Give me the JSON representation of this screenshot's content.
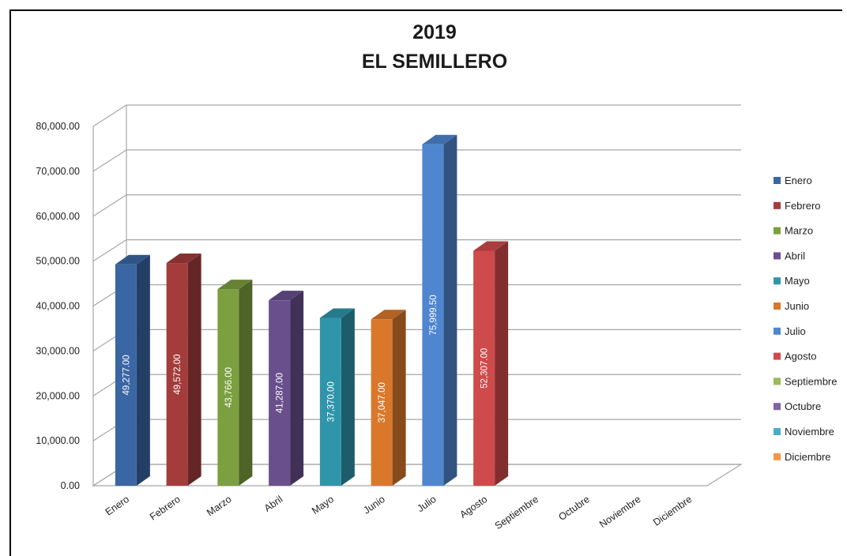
{
  "chart_data": {
    "type": "bar",
    "title": "2019",
    "subtitle": "EL SEMILLERO",
    "categories": [
      "Enero",
      "Febrero",
      "Marzo",
      "Abril",
      "Mayo",
      "Junio",
      "Julio",
      "Agosto",
      "Septiembre",
      "Octubre",
      "Noviembre",
      "Diciembre"
    ],
    "values": [
      49277.0,
      49572.0,
      43766.0,
      41287.0,
      37370.0,
      37047.0,
      75999.5,
      52307.0,
      null,
      null,
      null,
      null
    ],
    "value_labels": [
      "49,277.00",
      "49,572.00",
      "43,766.00",
      "41,287.00",
      "37,370.00",
      "37,047.00",
      "75,999.50",
      "52,307.00",
      "",
      "",
      "",
      ""
    ],
    "colors": [
      "#3a66a3",
      "#a43c3c",
      "#7c9f3f",
      "#6a4f8d",
      "#2f95ab",
      "#d9782b",
      "#4f86cf",
      "#cf4a4a",
      "#9bbb59",
      "#8064a2",
      "#4bacc6",
      "#f79646"
    ],
    "yticks": [
      "0.00",
      "10,000.00",
      "20,000.00",
      "30,000.00",
      "40,000.00",
      "50,000.00",
      "60,000.00",
      "70,000.00",
      "80,000.00"
    ],
    "ylim": [
      0,
      80000
    ],
    "grid": true,
    "legend": {
      "position": "right",
      "entries": [
        "Enero",
        "Febrero",
        "Marzo",
        "Abril",
        "Mayo",
        "Junio",
        "Julio",
        "Agosto",
        "Septiembre",
        "Octubre",
        "Noviembre",
        "Diciembre"
      ]
    },
    "xlabel": "",
    "ylabel": ""
  }
}
